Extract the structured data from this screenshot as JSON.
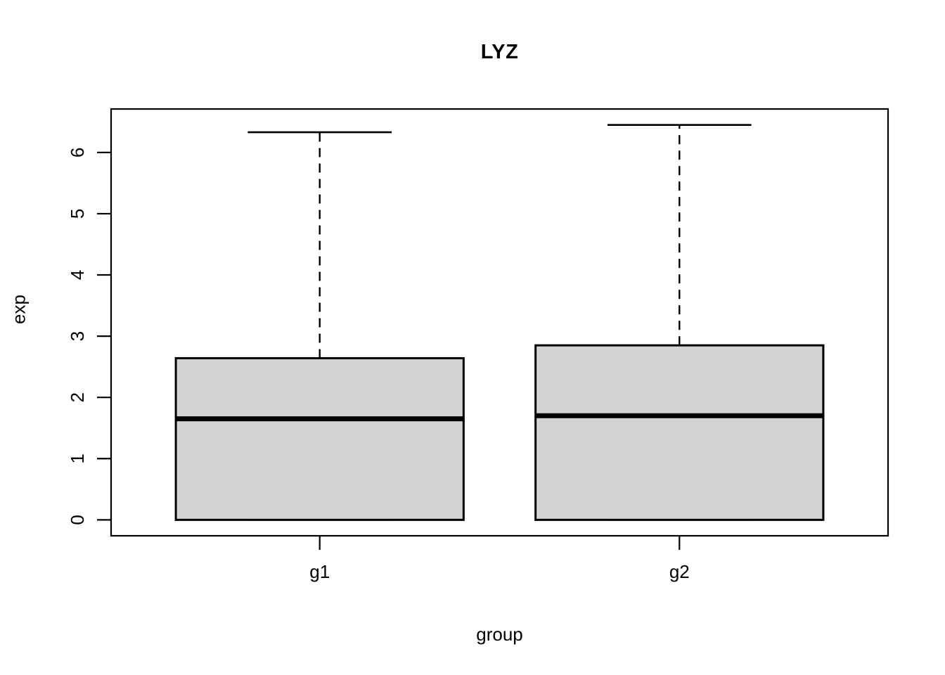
{
  "chart_data": {
    "type": "boxplot",
    "title": "LYZ",
    "xlabel": "group",
    "ylabel": "exp",
    "categories": [
      "g1",
      "g2"
    ],
    "y_ticks": [
      0,
      1,
      2,
      3,
      4,
      5,
      6
    ],
    "ylim": [
      -0.26,
      6.71
    ],
    "xlim": [
      0.42,
      2.58
    ],
    "box_width": 0.8,
    "cap_width": 0.4,
    "grid": false,
    "legend": "none",
    "box_fill": "#d3d3d3",
    "line_color": "#000000",
    "series": [
      {
        "name": "g1",
        "x": 1,
        "min": 0,
        "q1": 0,
        "median": 1.65,
        "q3": 2.64,
        "max": 6.33,
        "outliers": []
      },
      {
        "name": "g2",
        "x": 2,
        "min": 0,
        "q1": 0,
        "median": 1.7,
        "q3": 2.85,
        "max": 6.45,
        "outliers": []
      }
    ]
  }
}
